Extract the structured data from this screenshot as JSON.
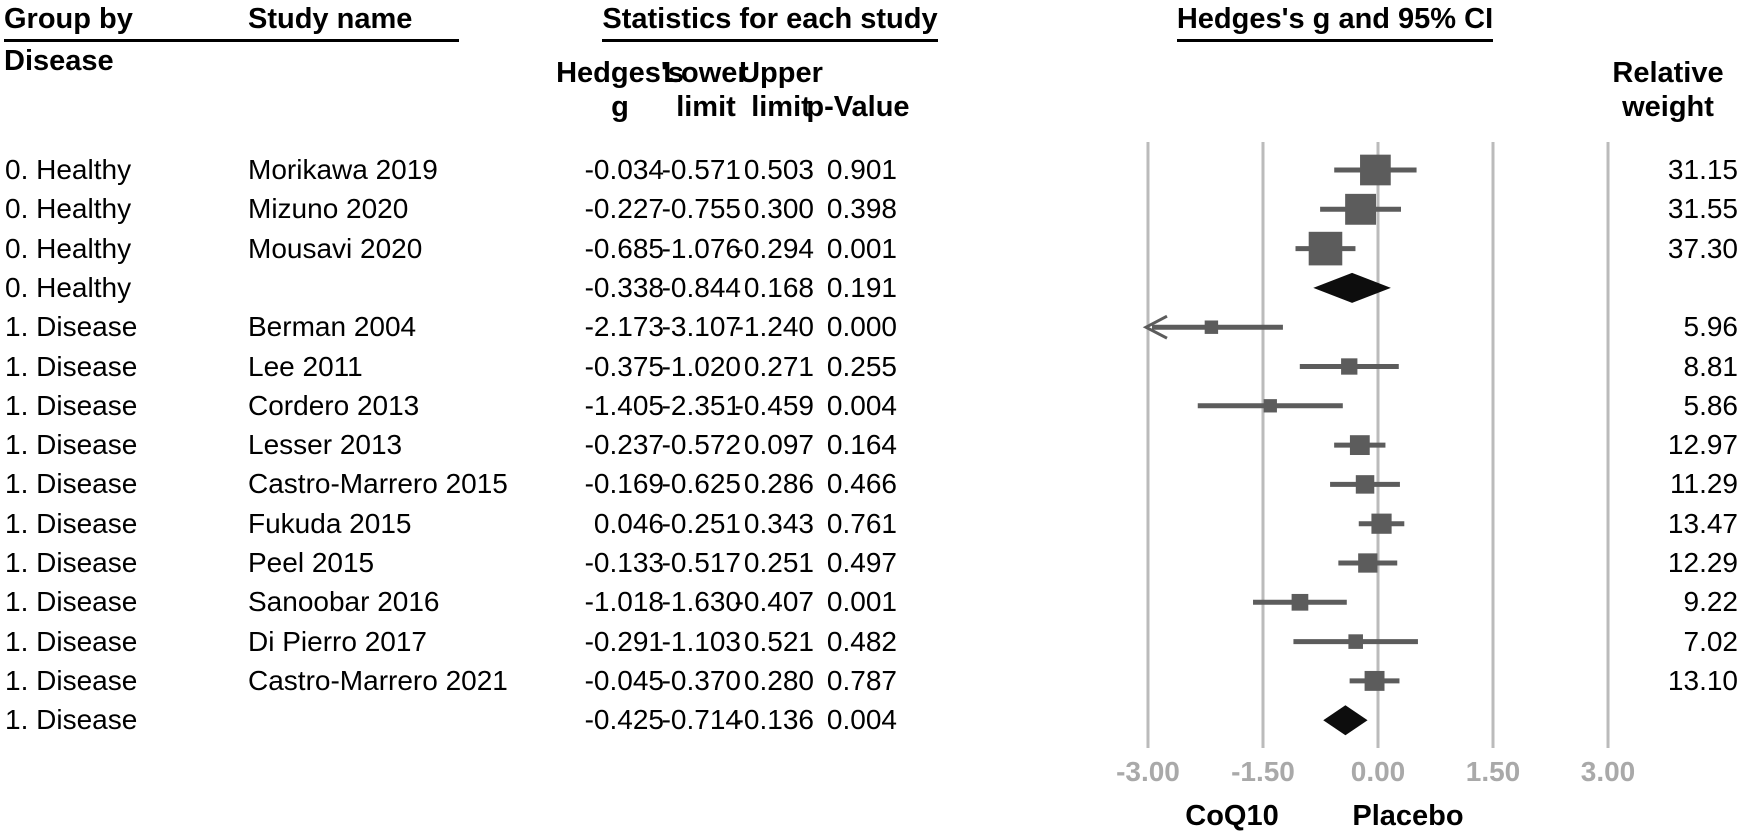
{
  "header": {
    "group_col_line1": "Group by",
    "group_col_line2": "Disease",
    "study_col": "Study name",
    "stats_title": "Statistics for each study",
    "stat_col_g_line1": "Hedges's",
    "stat_col_g_line2": "g",
    "stat_col_lower_line1": "Lower",
    "stat_col_lower_line2": "limit",
    "stat_col_upper_line1": "Upper",
    "stat_col_upper_line2": "limit",
    "stat_col_p": "p-Value",
    "plot_title": "Hedges's g and 95% CI",
    "weight_col_line1": "Relative",
    "weight_col_line2": "weight"
  },
  "colors": {
    "marker_gray": "#5c5c5c",
    "summary_black": "#0d0d0d",
    "gridline_gray": "#bbbbbb",
    "tick_label_gray": "#a9a9a9",
    "text_black": "#000000"
  },
  "chart_data": {
    "type": "scatter",
    "chart_kind": "forest_plot",
    "stats_title": "Statistics for each study",
    "plot_title": "Hedges's g and 95% CI",
    "x_axis": {
      "range": [
        -3,
        3
      ],
      "ticks": [
        -3.0,
        -1.5,
        0.0,
        1.5,
        3.0
      ],
      "tick_labels": [
        "-3.00",
        "-1.50",
        "0.00",
        "1.50",
        "3.00"
      ],
      "grid": true,
      "left_direction_label": "CoQ10",
      "right_direction_label": "Placebo"
    },
    "rows": [
      {
        "group": "0. Healthy",
        "study": "Morikawa 2019",
        "g": "-0.034",
        "lower": "-0.571",
        "upper": "0.503",
        "p": "0.901",
        "weight": "31.15",
        "kind": "study"
      },
      {
        "group": "0. Healthy",
        "study": "Mizuno 2020",
        "g": "-0.227",
        "lower": "-0.755",
        "upper": "0.300",
        "p": "0.398",
        "weight": "31.55",
        "kind": "study"
      },
      {
        "group": "0. Healthy",
        "study": "Mousavi 2020",
        "g": "-0.685",
        "lower": "-1.076",
        "upper": "-0.294",
        "p": "0.001",
        "weight": "37.30",
        "kind": "study"
      },
      {
        "group": "0. Healthy",
        "study": "",
        "g": "-0.338",
        "lower": "-0.844",
        "upper": "0.168",
        "p": "0.191",
        "weight": "",
        "kind": "summary"
      },
      {
        "group": "1. Disease",
        "study": "Berman 2004",
        "g": "-2.173",
        "lower": "-3.107",
        "upper": "-1.240",
        "p": "0.000",
        "weight": "5.96",
        "kind": "study"
      },
      {
        "group": "1. Disease",
        "study": "Lee 2011",
        "g": "-0.375",
        "lower": "-1.020",
        "upper": "0.271",
        "p": "0.255",
        "weight": "8.81",
        "kind": "study"
      },
      {
        "group": "1. Disease",
        "study": "Cordero 2013",
        "g": "-1.405",
        "lower": "-2.351",
        "upper": "-0.459",
        "p": "0.004",
        "weight": "5.86",
        "kind": "study"
      },
      {
        "group": "1. Disease",
        "study": "Lesser 2013",
        "g": "-0.237",
        "lower": "-0.572",
        "upper": "0.097",
        "p": "0.164",
        "weight": "12.97",
        "kind": "study"
      },
      {
        "group": "1. Disease",
        "study": "Castro-Marrero 2015",
        "g": "-0.169",
        "lower": "-0.625",
        "upper": "0.286",
        "p": "0.466",
        "weight": "11.29",
        "kind": "study"
      },
      {
        "group": "1. Disease",
        "study": "Fukuda 2015",
        "g": "0.046",
        "lower": "-0.251",
        "upper": "0.343",
        "p": "0.761",
        "weight": "13.47",
        "kind": "study"
      },
      {
        "group": "1. Disease",
        "study": "Peel 2015",
        "g": "-0.133",
        "lower": "-0.517",
        "upper": "0.251",
        "p": "0.497",
        "weight": "12.29",
        "kind": "study"
      },
      {
        "group": "1. Disease",
        "study": "Sanoobar 2016",
        "g": "-1.018",
        "lower": "-1.630",
        "upper": "-0.407",
        "p": "0.001",
        "weight": "9.22",
        "kind": "study"
      },
      {
        "group": "1. Disease",
        "study": "Di Pierro 2017",
        "g": "-0.291",
        "lower": "-1.103",
        "upper": "0.521",
        "p": "0.482",
        "weight": "7.02",
        "kind": "study"
      },
      {
        "group": "1. Disease",
        "study": "Castro-Marrero 2021",
        "g": "-0.045",
        "lower": "-0.370",
        "upper": "0.280",
        "p": "0.787",
        "weight": "13.10",
        "kind": "study"
      },
      {
        "group": "1. Disease",
        "study": "",
        "g": "-0.425",
        "lower": "-0.714",
        "upper": "-0.136",
        "p": "0.004",
        "weight": "",
        "kind": "summary"
      }
    ]
  }
}
